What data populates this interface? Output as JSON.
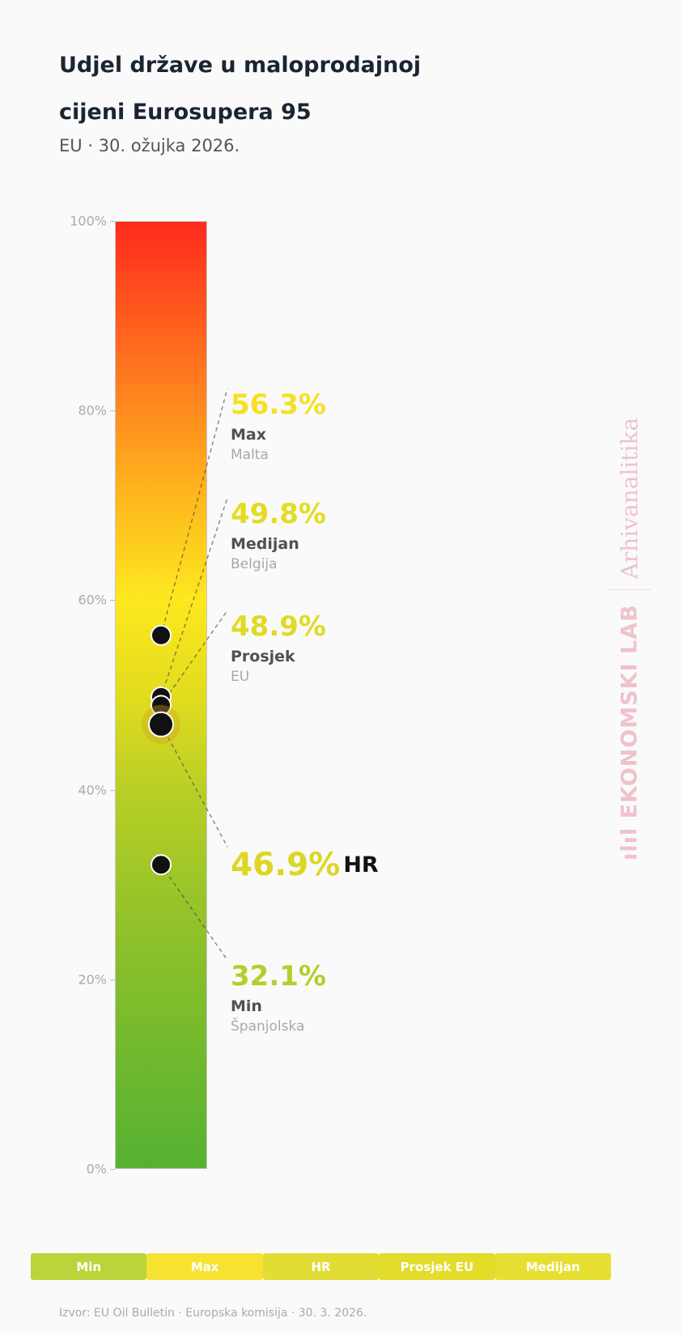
{
  "header": {
    "title": "Udjel države u maloprodajnoj cijeni Eurosupera 95",
    "subtitle": "EU · 30. ožujka 2026."
  },
  "chart_data": {
    "type": "scatter",
    "ylim": [
      0,
      100
    ],
    "y_ticks": [
      "0%",
      "20%",
      "40%",
      "60%",
      "80%",
      "100%"
    ],
    "points": [
      {
        "key": "max",
        "value": 56.3,
        "value_label": "56.3%",
        "label": "Max",
        "sublabel": "Malta",
        "color": "#f5e023"
      },
      {
        "key": "median",
        "value": 49.8,
        "value_label": "49.8%",
        "label": "Medijan",
        "sublabel": "Belgija",
        "color": "#e4dc22"
      },
      {
        "key": "mean",
        "value": 48.9,
        "value_label": "48.9%",
        "label": "Prosjek",
        "sublabel": "EU",
        "color": "#e1da24"
      },
      {
        "key": "hr",
        "value": 46.9,
        "value_label": "46.9%",
        "label": "HR",
        "color": "#dcd724"
      },
      {
        "key": "min",
        "value": 32.1,
        "value_label": "32.1%",
        "label": "Min",
        "sublabel": "Španjolska",
        "color": "#b6cd2c"
      }
    ],
    "legend": [
      {
        "label": "Min",
        "color": "#bcd43a"
      },
      {
        "label": "Max",
        "color": "#f7e232"
      },
      {
        "label": "HR",
        "color": "#e2dd34"
      },
      {
        "label": "Prosjek EU",
        "color": "#e3dc2b"
      },
      {
        "label": "Medijan",
        "color": "#e6df32"
      }
    ]
  },
  "watermark": {
    "top": "Arhivanalitika",
    "bottom": "ılıl EKONOMSKI LAB"
  },
  "footer": {
    "source": "Izvor: EU Oil Bulletin · Europska komisija · 30. 3. 2026."
  }
}
